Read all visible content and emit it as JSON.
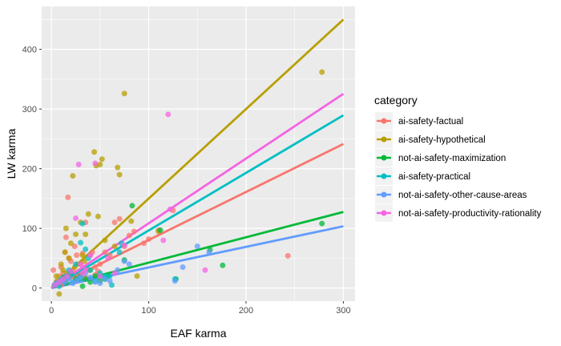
{
  "chart_data": {
    "type": "scatter",
    "xlabel": "EAF karma",
    "ylabel": "LW karma",
    "xlim": [
      -10,
      312
    ],
    "ylim": [
      -22,
      472
    ],
    "x_ticks": [
      0,
      100,
      200,
      300
    ],
    "y_ticks": [
      0,
      100,
      200,
      300,
      400
    ],
    "grid": true,
    "legend": {
      "title": "category",
      "position": "right"
    },
    "series": [
      {
        "name": "ai-safety-factual",
        "color": "#F8766D",
        "fit": {
          "intercept": 0,
          "slope": 0.805
        },
        "points": [
          [
            2,
            30
          ],
          [
            5,
            10
          ],
          [
            8,
            20
          ],
          [
            10,
            35
          ],
          [
            12,
            25
          ],
          [
            14,
            60
          ],
          [
            15,
            85
          ],
          [
            17,
            152
          ],
          [
            18,
            50
          ],
          [
            20,
            45
          ],
          [
            22,
            30
          ],
          [
            24,
            70
          ],
          [
            26,
            55
          ],
          [
            28,
            20
          ],
          [
            30,
            40
          ],
          [
            32,
            58
          ],
          [
            35,
            110
          ],
          [
            38,
            30
          ],
          [
            40,
            55
          ],
          [
            42,
            60
          ],
          [
            45,
            35
          ],
          [
            48,
            28
          ],
          [
            50,
            40
          ],
          [
            55,
            60
          ],
          [
            60,
            55
          ],
          [
            65,
            110
          ],
          [
            70,
            116
          ],
          [
            75,
            70
          ],
          [
            80,
            88
          ],
          [
            85,
            95
          ],
          [
            95,
            75
          ],
          [
            100,
            82
          ],
          [
            110,
            97
          ],
          [
            125,
            130
          ],
          [
            243,
            54
          ],
          [
            5,
            5
          ],
          [
            10,
            5
          ],
          [
            25,
            12
          ],
          [
            35,
            18
          ],
          [
            45,
            22
          ]
        ]
      },
      {
        "name": "ai-safety-hypothetical",
        "color": "#B79F00",
        "fit": {
          "intercept": 0,
          "slope": 1.5
        },
        "points": [
          [
            3,
            5
          ],
          [
            5,
            20
          ],
          [
            8,
            -10
          ],
          [
            10,
            40
          ],
          [
            12,
            30
          ],
          [
            14,
            60
          ],
          [
            15,
            100
          ],
          [
            18,
            50
          ],
          [
            20,
            75
          ],
          [
            22,
            188
          ],
          [
            25,
            90
          ],
          [
            27,
            40
          ],
          [
            30,
            110
          ],
          [
            32,
            55
          ],
          [
            35,
            90
          ],
          [
            38,
            124
          ],
          [
            40,
            30
          ],
          [
            44,
            228
          ],
          [
            46,
            205
          ],
          [
            48,
            120
          ],
          [
            50,
            207
          ],
          [
            52,
            216
          ],
          [
            55,
            80
          ],
          [
            65,
            70
          ],
          [
            68,
            202
          ],
          [
            70,
            190
          ],
          [
            75,
            326
          ],
          [
            82,
            112
          ],
          [
            88,
            20
          ],
          [
            110,
            95
          ],
          [
            278,
            362
          ],
          [
            6,
            12
          ],
          [
            16,
            25
          ],
          [
            24,
            35
          ],
          [
            34,
            45
          ]
        ]
      },
      {
        "name": "not-ai-safety-maximization",
        "color": "#00BA38",
        "fit": {
          "intercept": 0,
          "slope": 0.425
        },
        "points": [
          [
            4,
            4
          ],
          [
            8,
            10
          ],
          [
            12,
            18
          ],
          [
            15,
            8
          ],
          [
            20,
            25
          ],
          [
            25,
            15
          ],
          [
            30,
            20
          ],
          [
            32,
            3
          ],
          [
            35,
            15
          ],
          [
            40,
            10
          ],
          [
            45,
            20
          ],
          [
            50,
            12
          ],
          [
            55,
            15
          ],
          [
            58,
            20
          ],
          [
            75,
            47
          ],
          [
            83,
            138
          ],
          [
            112,
            97
          ],
          [
            128,
            15
          ],
          [
            163,
            64
          ],
          [
            176,
            38
          ],
          [
            278,
            108
          ]
        ]
      },
      {
        "name": "ai-safety-practical",
        "color": "#00BFC4",
        "fit": {
          "intercept": 0,
          "slope": 0.965
        },
        "points": [
          [
            5,
            8
          ],
          [
            10,
            15
          ],
          [
            15,
            20
          ],
          [
            18,
            30
          ],
          [
            20,
            25
          ],
          [
            25,
            40
          ],
          [
            28,
            15
          ],
          [
            30,
            76
          ],
          [
            32,
            108
          ],
          [
            35,
            65
          ],
          [
            38,
            50
          ],
          [
            40,
            30
          ],
          [
            45,
            12
          ],
          [
            50,
            25
          ],
          [
            55,
            20
          ],
          [
            60,
            20
          ],
          [
            62,
            5
          ],
          [
            70,
            60
          ],
          [
            72,
            75
          ],
          [
            127,
            15
          ],
          [
            8,
            3
          ],
          [
            22,
            10
          ]
        ]
      },
      {
        "name": "not-ai-safety-other-cause-areas",
        "color": "#619CFF",
        "fit": {
          "intercept": 0,
          "slope": 0.345
        },
        "points": [
          [
            3,
            5
          ],
          [
            6,
            8
          ],
          [
            10,
            12
          ],
          [
            14,
            10
          ],
          [
            18,
            15
          ],
          [
            22,
            8
          ],
          [
            26,
            12
          ],
          [
            30,
            18
          ],
          [
            35,
            25
          ],
          [
            40,
            18
          ],
          [
            45,
            10
          ],
          [
            50,
            8
          ],
          [
            55,
            15
          ],
          [
            60,
            12
          ],
          [
            68,
            30
          ],
          [
            75,
            45
          ],
          [
            80,
            40
          ],
          [
            127,
            12
          ],
          [
            135,
            35
          ],
          [
            150,
            70
          ],
          [
            162,
            60
          ]
        ]
      },
      {
        "name": "not-ai-safety-productivity-rationality",
        "color": "#F564E3",
        "fit": {
          "intercept": 0,
          "slope": 1.085
        },
        "points": [
          [
            4,
            5
          ],
          [
            8,
            10
          ],
          [
            12,
            15
          ],
          [
            16,
            20
          ],
          [
            20,
            28
          ],
          [
            25,
            117
          ],
          [
            28,
            207
          ],
          [
            30,
            40
          ],
          [
            32,
            25
          ],
          [
            35,
            30
          ],
          [
            40,
            55
          ],
          [
            45,
            209
          ],
          [
            50,
            20
          ],
          [
            58,
            50
          ],
          [
            65,
            25
          ],
          [
            75,
            72
          ],
          [
            115,
            80
          ],
          [
            120,
            291
          ],
          [
            122,
            132
          ],
          [
            158,
            30
          ]
        ]
      }
    ]
  }
}
